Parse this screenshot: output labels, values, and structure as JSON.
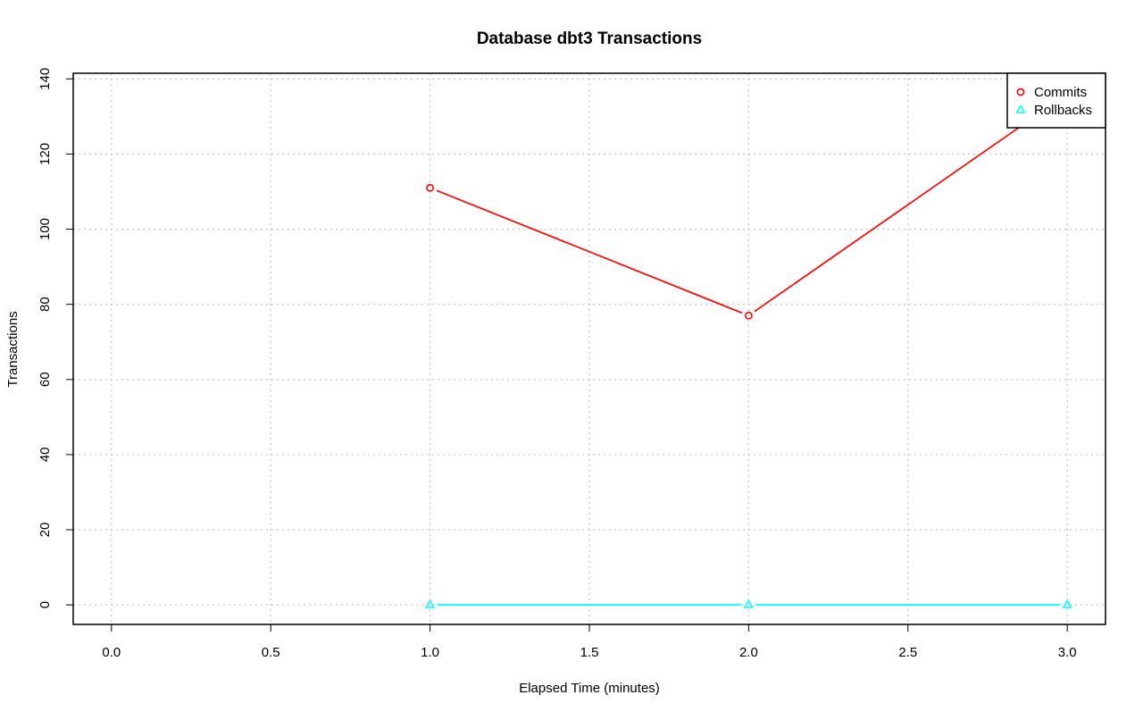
{
  "chart_data": {
    "type": "line",
    "title": "Database dbt3 Transactions",
    "xlabel": "Elapsed Time (minutes)",
    "ylabel": "Transactions",
    "xlim": [
      -0.12,
      3.12
    ],
    "ylim": [
      -5.2,
      141.5
    ],
    "x_ticks": [
      0.0,
      0.5,
      1.0,
      1.5,
      2.0,
      2.5,
      3.0
    ],
    "x_tick_labels": [
      "0.0",
      "0.5",
      "1.0",
      "1.5",
      "2.0",
      "2.5",
      "3.0"
    ],
    "y_ticks": [
      0,
      20,
      40,
      60,
      80,
      100,
      120,
      140
    ],
    "y_tick_labels": [
      "0",
      "20",
      "40",
      "60",
      "80",
      "100",
      "120",
      "140"
    ],
    "grid": true,
    "legend_position": "top-right",
    "series": [
      {
        "name": "Commits",
        "color": "#ff0000",
        "marker": "circle",
        "x": [
          1,
          2,
          3
        ],
        "y": [
          111,
          77,
          136
        ]
      },
      {
        "name": "Rollbacks",
        "color": "#00ffff",
        "marker": "triangle",
        "x": [
          1,
          2,
          3
        ],
        "y": [
          0,
          0,
          0
        ]
      }
    ]
  }
}
